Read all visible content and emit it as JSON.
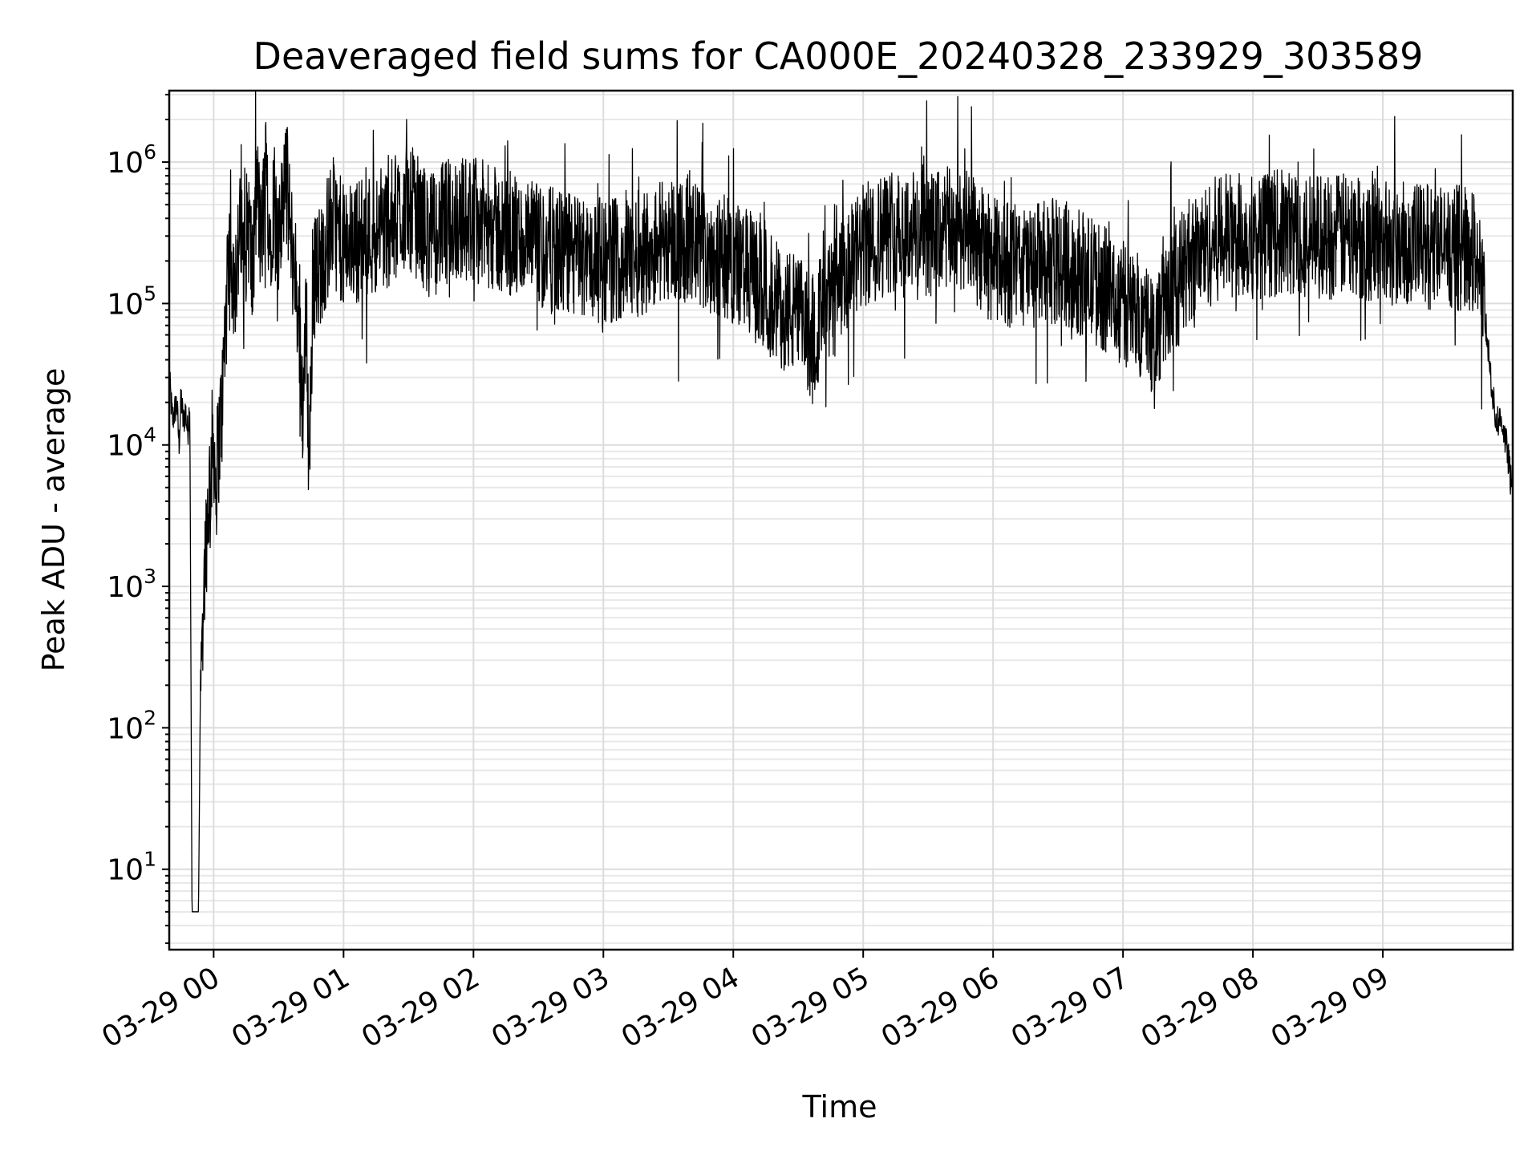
{
  "chart_data": {
    "type": "line",
    "title": "Deaveraged field sums for CA000E_20240328_233929_303589",
    "xlabel": "Time",
    "ylabel": "Peak ADU - average",
    "yscale": "log",
    "ylim": [
      2.7,
      3200000
    ],
    "xlim": [
      "2024-03-28 23:39:29",
      "2024-03-29 10:00:00"
    ],
    "grid": true,
    "x_ticks": [
      {
        "t": "2024-03-29 00:00",
        "label": "03-29 00"
      },
      {
        "t": "2024-03-29 01:00",
        "label": "03-29 01"
      },
      {
        "t": "2024-03-29 02:00",
        "label": "03-29 02"
      },
      {
        "t": "2024-03-29 03:00",
        "label": "03-29 03"
      },
      {
        "t": "2024-03-29 04:00",
        "label": "03-29 04"
      },
      {
        "t": "2024-03-29 05:00",
        "label": "03-29 05"
      },
      {
        "t": "2024-03-29 06:00",
        "label": "03-29 06"
      },
      {
        "t": "2024-03-29 07:00",
        "label": "03-29 07"
      },
      {
        "t": "2024-03-29 08:00",
        "label": "03-29 08"
      },
      {
        "t": "2024-03-29 09:00",
        "label": "03-29 09"
      }
    ],
    "y_ticks": [
      {
        "value": 10,
        "base": "10",
        "exp": "1"
      },
      {
        "value": 100,
        "base": "10",
        "exp": "2"
      },
      {
        "value": 1000,
        "base": "10",
        "exp": "3"
      },
      {
        "value": 10000,
        "base": "10",
        "exp": "4"
      },
      {
        "value": 100000,
        "base": "10",
        "exp": "5"
      },
      {
        "value": 1000000,
        "base": "10",
        "exp": "6"
      }
    ],
    "series": [
      {
        "color": "#000000",
        "points": [
          [
            "2024-03-28 23:39:29",
            30000
          ],
          [
            "2024-03-28 23:41",
            15000
          ],
          [
            "2024-03-28 23:43",
            20000
          ],
          [
            "2024-03-28 23:44",
            10000
          ],
          [
            "2024-03-28 23:45",
            22000
          ],
          [
            "2024-03-28 23:46",
            14000
          ],
          [
            "2024-03-28 23:47",
            18000
          ],
          [
            "2024-03-28 23:48",
            12000
          ],
          [
            "2024-03-28 23:49",
            20000
          ],
          [
            "2024-03-28 23:50",
            5
          ],
          [
            "2024-03-28 23:53",
            5
          ],
          [
            "2024-03-28 23:54",
            300
          ],
          [
            "2024-03-28 23:55",
            700
          ],
          [
            "2024-03-28 23:56",
            1500
          ],
          [
            "2024-03-28 23:57",
            3000
          ],
          [
            "2024-03-28 23:58",
            5000
          ],
          [
            "2024-03-28 23:59",
            8000
          ],
          [
            "2024-03-29 00:00",
            12000
          ],
          [
            "2024-03-29 00:01",
            5000
          ],
          [
            "2024-03-29 00:02",
            9000
          ],
          [
            "2024-03-29 00:04",
            20000
          ],
          [
            "2024-03-29 00:05",
            50000
          ],
          [
            "2024-03-29 00:06",
            100000
          ],
          [
            "2024-03-29 00:08",
            200000
          ],
          [
            "2024-03-29 00:10",
            150000
          ],
          [
            "2024-03-29 00:12",
            300000
          ],
          [
            "2024-03-29 00:14",
            200000
          ],
          [
            "2024-03-29 00:16",
            400000
          ],
          [
            "2024-03-29 00:18",
            150000
          ],
          [
            "2024-03-29 00:20",
            700000
          ],
          [
            "2024-03-29 00:22",
            250000
          ],
          [
            "2024-03-29 00:24",
            1000000
          ],
          [
            "2024-03-29 00:26",
            300000
          ],
          [
            "2024-03-29 00:28",
            600000
          ],
          [
            "2024-03-29 00:30",
            200000
          ],
          [
            "2024-03-29 00:33",
            1000000
          ],
          [
            "2024-03-29 00:36",
            250000
          ],
          [
            "2024-03-29 00:38",
            150000
          ],
          [
            "2024-03-29 00:40",
            50000
          ],
          [
            "2024-03-29 00:41",
            20000
          ],
          [
            "2024-03-29 00:43",
            80000
          ],
          [
            "2024-03-29 00:44",
            6000
          ],
          [
            "2024-03-29 00:46",
            150000
          ],
          [
            "2024-03-29 00:50",
            200000
          ],
          [
            "2024-03-29 00:55",
            400000
          ],
          [
            "2024-03-29 01:00",
            250000
          ],
          [
            "2024-03-29 01:10",
            300000
          ],
          [
            "2024-03-29 01:20",
            350000
          ],
          [
            "2024-03-29 01:30",
            500000
          ],
          [
            "2024-03-29 01:40",
            300000
          ],
          [
            "2024-03-29 01:50",
            400000
          ],
          [
            "2024-03-29 02:00",
            400000
          ],
          [
            "2024-03-29 02:15",
            300000
          ],
          [
            "2024-03-29 02:30",
            250000
          ],
          [
            "2024-03-29 02:45",
            220000
          ],
          [
            "2024-03-29 03:00",
            200000
          ],
          [
            "2024-03-29 03:15",
            220000
          ],
          [
            "2024-03-29 03:30",
            300000
          ],
          [
            "2024-03-29 03:45",
            250000
          ],
          [
            "2024-03-29 04:00",
            200000
          ],
          [
            "2024-03-29 04:10",
            150000
          ],
          [
            "2024-03-29 04:20",
            100000
          ],
          [
            "2024-03-29 04:30",
            80000
          ],
          [
            "2024-03-29 04:35",
            60000
          ],
          [
            "2024-03-29 04:45",
            100000
          ],
          [
            "2024-03-29 05:00",
            250000
          ],
          [
            "2024-03-29 05:15",
            350000
          ],
          [
            "2024-03-29 05:30",
            300000
          ],
          [
            "2024-03-29 05:45",
            350000
          ],
          [
            "2024-03-29 06:00",
            200000
          ],
          [
            "2024-03-29 06:15",
            180000
          ],
          [
            "2024-03-29 06:30",
            200000
          ],
          [
            "2024-03-29 06:45",
            150000
          ],
          [
            "2024-03-29 07:00",
            100000
          ],
          [
            "2024-03-29 07:10",
            80000
          ],
          [
            "2024-03-29 07:15",
            60000
          ],
          [
            "2024-03-29 07:20",
            100000
          ],
          [
            "2024-03-29 07:30",
            200000
          ],
          [
            "2024-03-29 07:45",
            300000
          ],
          [
            "2024-03-29 08:00",
            300000
          ],
          [
            "2024-03-29 08:15",
            320000
          ],
          [
            "2024-03-29 08:30",
            300000
          ],
          [
            "2024-03-29 08:45",
            300000
          ],
          [
            "2024-03-29 09:00",
            280000
          ],
          [
            "2024-03-29 09:15",
            260000
          ],
          [
            "2024-03-29 09:30",
            250000
          ],
          [
            "2024-03-29 09:40",
            250000
          ],
          [
            "2024-03-29 09:45",
            200000
          ],
          [
            "2024-03-29 09:46",
            100000
          ],
          [
            "2024-03-29 09:48",
            60000
          ],
          [
            "2024-03-29 09:50",
            30000
          ],
          [
            "2024-03-29 09:52",
            15000
          ],
          [
            "2024-03-29 09:55",
            15000
          ],
          [
            "2024-03-29 09:58",
            8000
          ],
          [
            "2024-03-29 10:00",
            4000
          ]
        ]
      }
    ]
  }
}
